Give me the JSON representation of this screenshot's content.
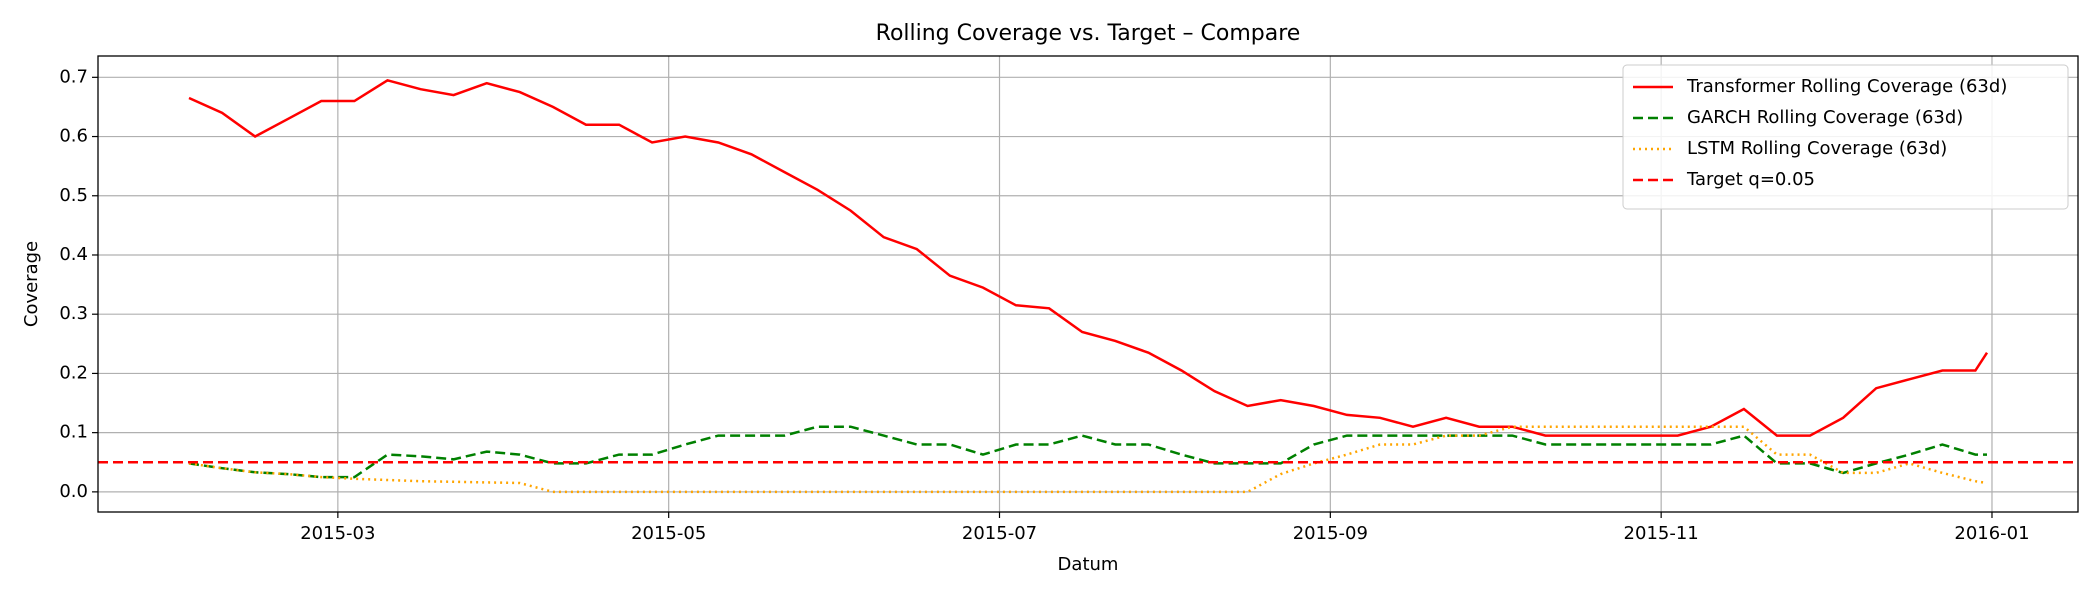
{
  "chart_data": {
    "type": "line",
    "title": "Rolling Coverage vs. Target – Compare",
    "x_label": "Datum",
    "y_label": "Coverage",
    "x": [
      2.1,
      2.3,
      2.5,
      2.7,
      2.9,
      3.1,
      3.3,
      3.5,
      3.7,
      3.9,
      4.1,
      4.3,
      4.5,
      4.7,
      4.9,
      5.1,
      5.3,
      5.5,
      5.7,
      5.9,
      6.1,
      6.3,
      6.5,
      6.7,
      6.9,
      7.1,
      7.3,
      7.5,
      7.7,
      7.9,
      8.1,
      8.3,
      8.5,
      8.7,
      8.9,
      9.1,
      9.3,
      9.5,
      9.7,
      9.9,
      10.1,
      10.3,
      10.5,
      10.7,
      10.9,
      11.1,
      11.3,
      11.5,
      11.7,
      11.9,
      12.1,
      12.3,
      12.5,
      12.7,
      12.9,
      12.97
    ],
    "series": [
      {
        "name": "Transformer Rolling Coverage (63d)",
        "color": "#ff0000",
        "linestyle": "solid",
        "values": [
          0.665,
          0.64,
          0.6,
          0.63,
          0.66,
          0.66,
          0.695,
          0.68,
          0.67,
          0.69,
          0.675,
          0.65,
          0.62,
          0.62,
          0.59,
          0.6,
          0.59,
          0.57,
          0.54,
          0.51,
          0.475,
          0.43,
          0.41,
          0.365,
          0.345,
          0.315,
          0.31,
          0.27,
          0.255,
          0.235,
          0.205,
          0.17,
          0.145,
          0.155,
          0.145,
          0.13,
          0.125,
          0.11,
          0.125,
          0.11,
          0.11,
          0.095,
          0.095,
          0.095,
          0.095,
          0.095,
          0.11,
          0.14,
          0.095,
          0.095,
          0.125,
          0.175,
          0.19,
          0.205,
          0.205,
          0.235
        ]
      },
      {
        "name": "GARCH Rolling Coverage (63d)",
        "color": "#008000",
        "linestyle": "dashed",
        "values": [
          0.048,
          0.04,
          0.033,
          0.03,
          0.025,
          0.025,
          0.063,
          0.06,
          0.055,
          0.068,
          0.063,
          0.048,
          0.048,
          0.063,
          0.063,
          0.08,
          0.095,
          0.095,
          0.095,
          0.11,
          0.11,
          0.095,
          0.08,
          0.08,
          0.063,
          0.08,
          0.08,
          0.095,
          0.08,
          0.08,
          0.063,
          0.048,
          0.048,
          0.048,
          0.08,
          0.095,
          0.095,
          0.095,
          0.095,
          0.095,
          0.095,
          0.08,
          0.08,
          0.08,
          0.08,
          0.08,
          0.08,
          0.095,
          0.048,
          0.048,
          0.032,
          0.048,
          0.063,
          0.08,
          0.063,
          0.063
        ]
      },
      {
        "name": "LSTM Rolling Coverage (63d)",
        "color": "#ffa500",
        "linestyle": "dotted",
        "values": [
          0.048,
          0.04,
          0.033,
          0.03,
          0.025,
          0.022,
          0.02,
          0.018,
          0.017,
          0.016,
          0.015,
          0,
          0,
          0,
          0,
          0,
          0,
          0,
          0,
          0,
          0,
          0,
          0,
          0,
          0,
          0,
          0,
          0,
          0,
          0,
          0,
          0,
          0,
          0.03,
          0.048,
          0.063,
          0.08,
          0.08,
          0.095,
          0.095,
          0.11,
          0.11,
          0.11,
          0.11,
          0.11,
          0.11,
          0.11,
          0.11,
          0.063,
          0.063,
          0.032,
          0.032,
          0.048,
          0.032,
          0.018,
          0.015
        ]
      }
    ],
    "target": {
      "name": "Target q=0.05",
      "value": 0.05,
      "color": "#ff0000",
      "linestyle": "dashed"
    },
    "xlim": [
      1.55,
      13.52
    ],
    "xticks": [
      {
        "value": 3,
        "label": "2015-03"
      },
      {
        "value": 5,
        "label": "2015-05"
      },
      {
        "value": 7,
        "label": "2015-07"
      },
      {
        "value": 9,
        "label": "2015-09"
      },
      {
        "value": 11,
        "label": "2015-11"
      },
      {
        "value": 13,
        "label": "2016-01"
      }
    ],
    "ylim": [
      -0.034,
      0.736
    ],
    "yticks": [
      {
        "value": 0,
        "label": "0.0"
      },
      0.1,
      0.2,
      0.3,
      0.4,
      0.5,
      0.6,
      0.7
    ],
    "grid": true,
    "legend": "upper right"
  }
}
